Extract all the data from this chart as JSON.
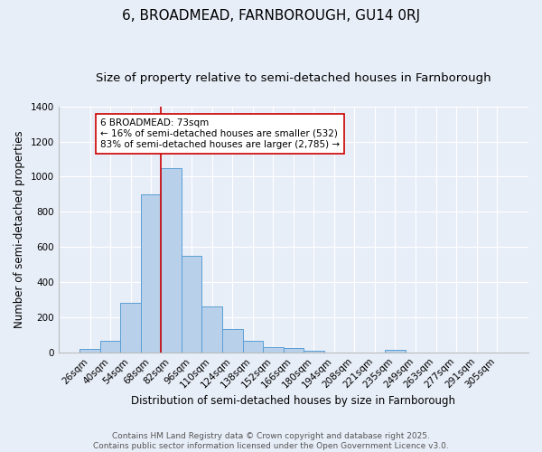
{
  "title": "6, BROADMEAD, FARNBOROUGH, GU14 0RJ",
  "subtitle": "Size of property relative to semi-detached houses in Farnborough",
  "xlabel": "Distribution of semi-detached houses by size in Farnborough",
  "ylabel": "Number of semi-detached properties",
  "categories": [
    "26sqm",
    "40sqm",
    "54sqm",
    "68sqm",
    "82sqm",
    "96sqm",
    "110sqm",
    "124sqm",
    "138sqm",
    "152sqm",
    "166sqm",
    "180sqm",
    "194sqm",
    "208sqm",
    "221sqm",
    "235sqm",
    "249sqm",
    "263sqm",
    "277sqm",
    "291sqm",
    "305sqm"
  ],
  "values": [
    20,
    65,
    280,
    900,
    1050,
    550,
    260,
    135,
    65,
    28,
    22,
    8,
    0,
    0,
    0,
    15,
    0,
    0,
    0,
    0,
    0
  ],
  "bar_color": "#b8d0ea",
  "bar_edge_color": "#5a9fd4",
  "background_color": "#e8eef8",
  "plot_bg_color": "#e8eef8",
  "grid_color": "#ffffff",
  "vline_x_index": 3.5,
  "vline_color": "#cc0000",
  "annotation_text": "6 BROADMEAD: 73sqm\n← 16% of semi-detached houses are smaller (532)\n83% of semi-detached houses are larger (2,785) →",
  "annotation_box_color": "#ffffff",
  "annotation_box_edge": "#cc0000",
  "ylim": [
    0,
    1400
  ],
  "yticks": [
    0,
    200,
    400,
    600,
    800,
    1000,
    1200,
    1400
  ],
  "footnote": "Contains HM Land Registry data © Crown copyright and database right 2025.\nContains public sector information licensed under the Open Government Licence v3.0.",
  "title_fontsize": 11,
  "subtitle_fontsize": 9.5,
  "label_fontsize": 8.5,
  "tick_fontsize": 7.5,
  "footnote_fontsize": 6.5,
  "annot_fontsize": 7.5
}
